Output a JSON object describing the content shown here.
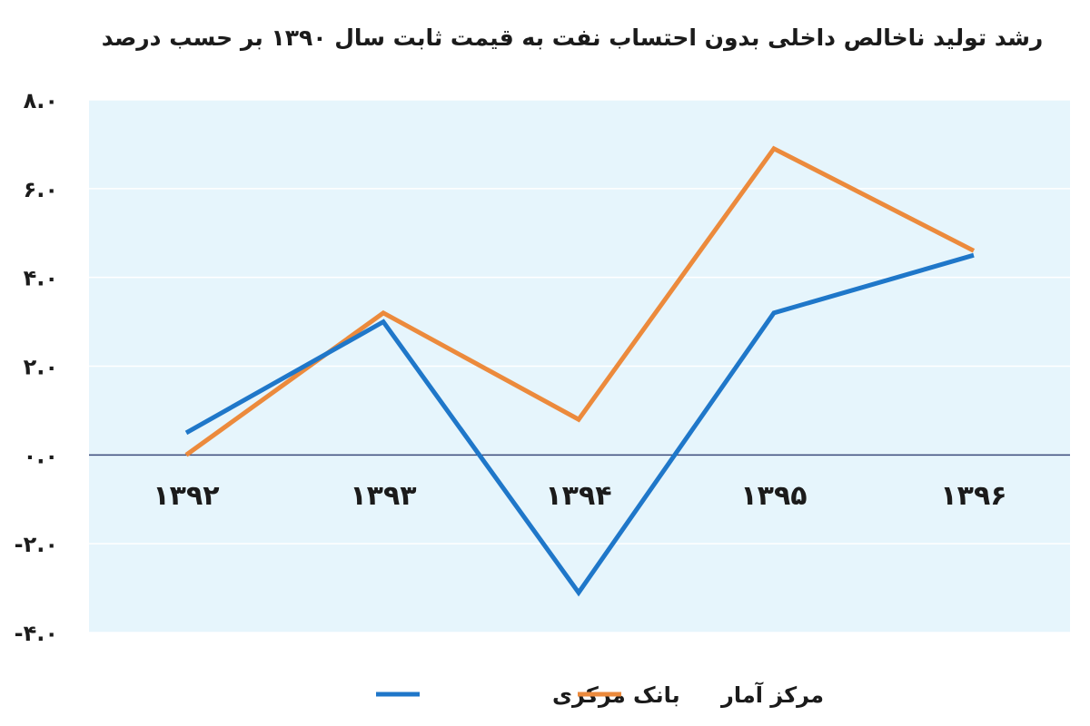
{
  "chart_data": {
    "type": "line",
    "title": "رشد تولید ناخالص داخلی بدون احتساب نفت به قیمت ثابت سال ۱۳۹۰ بر حسب درصد",
    "xlabel": "",
    "ylabel": "",
    "categories": [
      "۱۳۹۲",
      "۱۳۹۳",
      "۱۳۹۴",
      "۱۳۹۵",
      "۱۳۹۶"
    ],
    "ylim": [
      -4,
      8
    ],
    "yticks": [
      8,
      6,
      4,
      2,
      0,
      -2,
      -4
    ],
    "ytick_labels": [
      "۸.۰",
      "۶.۰",
      "۴.۰",
      "۲.۰",
      "۰.۰",
      "-۲.۰",
      "-۴.۰"
    ],
    "grid": true,
    "legend_position": "bottom-center",
    "series": [
      {
        "name": "بانک مرکزی",
        "color": "#1f77c9",
        "values": [
          0.5,
          3.0,
          -3.1,
          3.2,
          4.5
        ]
      },
      {
        "name": "مرکز آمار",
        "color": "#ec8a3c",
        "values": [
          0.0,
          3.2,
          0.8,
          6.9,
          4.6
        ]
      }
    ],
    "plot_background": "#e6f5fc",
    "zero_line_color": "#3a4a7a"
  }
}
